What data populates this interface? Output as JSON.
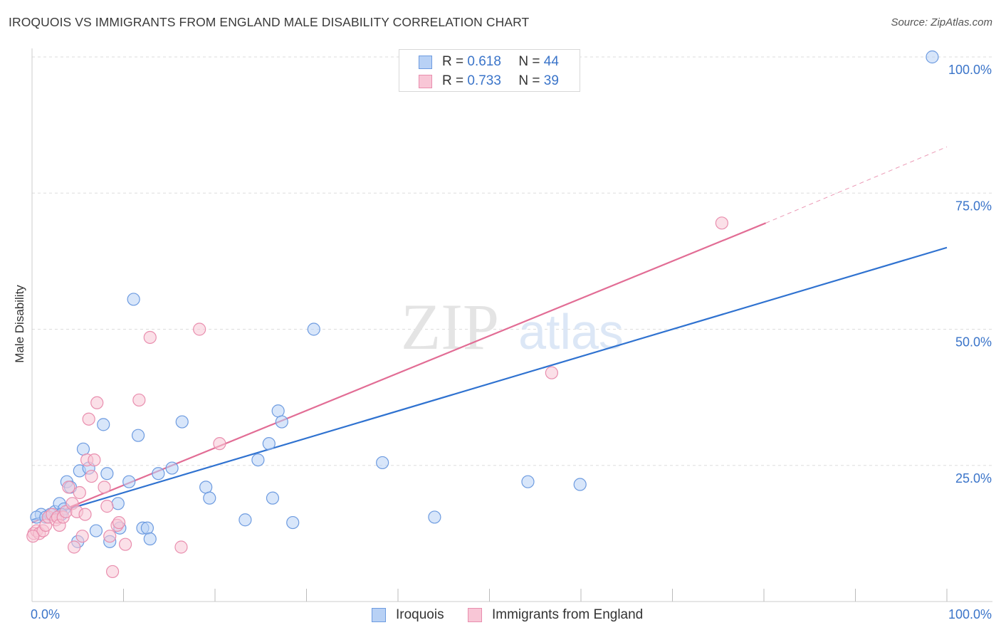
{
  "title": "IROQUOIS VS IMMIGRANTS FROM ENGLAND MALE DISABILITY CORRELATION CHART",
  "source": "Source: ZipAtlas.com",
  "watermark": {
    "zip": "ZIP",
    "atlas": "atlas"
  },
  "legend": {
    "rows": [
      {
        "r_label": "R =",
        "r_value": "0.618",
        "n_label": "N =",
        "n_value": "44"
      },
      {
        "r_label": "R =",
        "r_value": "0.733",
        "n_label": "N =",
        "n_value": "39"
      }
    ]
  },
  "colors": {
    "blue_fill": "#b8d1f5",
    "blue_stroke": "#6d9be0",
    "blue_line": "#2f72d0",
    "pink_fill": "#f8c6d6",
    "pink_stroke": "#e98eae",
    "pink_line": "#e26d95",
    "tick_label": "#3a74c9",
    "grid": "#dddddd"
  },
  "chart_data": {
    "type": "scatter",
    "title": "IROQUOIS VS IMMIGRANTS FROM ENGLAND MALE DISABILITY CORRELATION CHART",
    "xlabel": "",
    "ylabel": "Male Disability",
    "xlim": [
      0,
      100
    ],
    "ylim": [
      0,
      100
    ],
    "x_tick_labels": [
      "0.0%",
      "100.0%"
    ],
    "y_ticks": [
      25,
      50,
      75,
      100
    ],
    "y_tick_labels": [
      "25.0%",
      "50.0%",
      "75.0%",
      "100.0%"
    ],
    "grid": true,
    "legend_position": "top-center",
    "series": [
      {
        "name": "Iroquois",
        "r": 0.618,
        "n": 44,
        "points": [
          [
            1,
            16
          ],
          [
            2,
            16
          ],
          [
            2.5,
            16.5
          ],
          [
            3,
            18
          ],
          [
            3.5,
            17
          ],
          [
            3.8,
            22
          ],
          [
            4.2,
            21
          ],
          [
            5.2,
            24
          ],
          [
            5.6,
            28
          ],
          [
            6.2,
            24.5
          ],
          [
            7,
            13
          ],
          [
            7.8,
            32.5
          ],
          [
            8.2,
            23.5
          ],
          [
            8.5,
            11
          ],
          [
            9.4,
            18
          ],
          [
            9.6,
            13.5
          ],
          [
            10.6,
            22
          ],
          [
            11.1,
            55.5
          ],
          [
            11.6,
            30.5
          ],
          [
            12.1,
            13.5
          ],
          [
            12.6,
            13.5
          ],
          [
            12.9,
            11.5
          ],
          [
            13.8,
            23.5
          ],
          [
            15.3,
            24.5
          ],
          [
            16.4,
            33
          ],
          [
            19,
            21
          ],
          [
            19.4,
            19
          ],
          [
            23.3,
            15
          ],
          [
            24.7,
            26
          ],
          [
            25.9,
            29
          ],
          [
            26.3,
            19
          ],
          [
            26.9,
            35
          ],
          [
            27.3,
            33
          ],
          [
            28.5,
            14.5
          ],
          [
            30.8,
            50
          ],
          [
            38.3,
            25.5
          ],
          [
            44,
            15.5
          ],
          [
            54.2,
            22
          ],
          [
            59.9,
            21.5
          ],
          [
            98.4,
            100
          ],
          [
            0.5,
            15.5
          ],
          [
            1.5,
            15.5
          ],
          [
            5.0,
            11
          ],
          [
            3.2,
            16
          ]
        ]
      },
      {
        "name": "Immigrants from England",
        "r": 0.733,
        "n": 39,
        "points": [
          [
            0.2,
            12.5
          ],
          [
            0.5,
            13
          ],
          [
            0.8,
            12.5
          ],
          [
            1.2,
            13
          ],
          [
            1.5,
            14
          ],
          [
            1.8,
            15.5
          ],
          [
            2.2,
            16
          ],
          [
            2.6,
            15
          ],
          [
            2.8,
            15.5
          ],
          [
            3.0,
            14
          ],
          [
            3.4,
            15.5
          ],
          [
            3.7,
            16.5
          ],
          [
            4.0,
            21
          ],
          [
            4.4,
            18
          ],
          [
            4.6,
            10
          ],
          [
            4.9,
            16.5
          ],
          [
            5.2,
            20
          ],
          [
            5.5,
            12
          ],
          [
            5.8,
            16
          ],
          [
            6.0,
            26
          ],
          [
            6.2,
            33.5
          ],
          [
            6.5,
            23
          ],
          [
            6.8,
            26
          ],
          [
            7.1,
            36.5
          ],
          [
            7.9,
            21
          ],
          [
            8.2,
            17.5
          ],
          [
            8.5,
            12
          ],
          [
            8.8,
            5.5
          ],
          [
            9.3,
            14
          ],
          [
            9.5,
            14.5
          ],
          [
            10.2,
            10.5
          ],
          [
            11.7,
            37
          ],
          [
            12.9,
            48.5
          ],
          [
            16.3,
            10
          ],
          [
            18.3,
            50
          ],
          [
            20.5,
            29
          ],
          [
            56.8,
            42
          ],
          [
            75.4,
            69.5
          ],
          [
            0.1,
            12
          ]
        ]
      }
    ],
    "trendlines": [
      {
        "series": "Iroquois",
        "x": [
          0,
          100
        ],
        "y": [
          15,
          65
        ]
      },
      {
        "series": "Immigrants from England",
        "x": [
          0,
          80.2
        ],
        "y": [
          14.5,
          69.5
        ],
        "dashed_extension": {
          "x": [
            80.2,
            100
          ],
          "y": [
            69.5,
            83.5
          ]
        }
      }
    ]
  },
  "bottom_legend": [
    "Iroquois",
    "Immigrants from England"
  ]
}
